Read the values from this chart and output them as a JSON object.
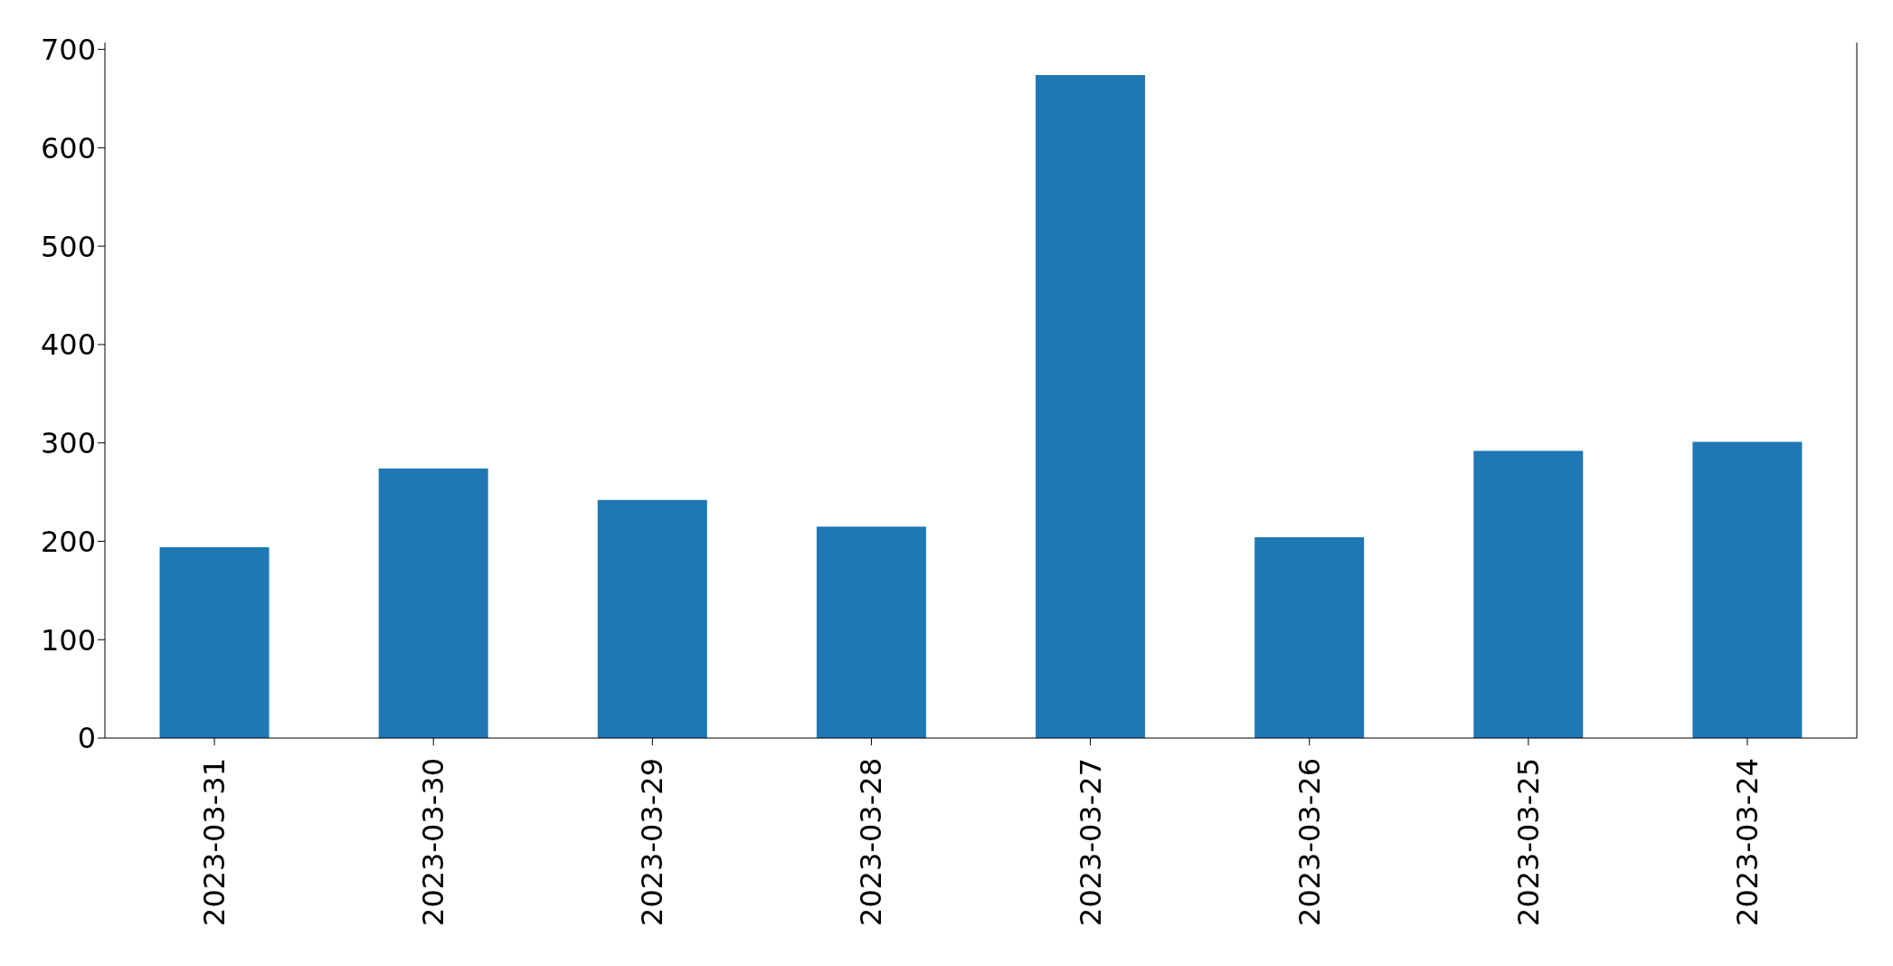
{
  "chart_data": {
    "type": "bar",
    "categories": [
      "2023-03-31",
      "2023-03-30",
      "2023-03-29",
      "2023-03-28",
      "2023-03-27",
      "2023-03-26",
      "2023-03-25",
      "2023-03-24"
    ],
    "values": [
      194,
      274,
      242,
      215,
      674,
      204,
      292,
      301
    ],
    "color": "#1f77b4",
    "ylim": [
      0,
      707
    ],
    "yticks": [
      0,
      100,
      200,
      300,
      400,
      500,
      600,
      700
    ]
  }
}
